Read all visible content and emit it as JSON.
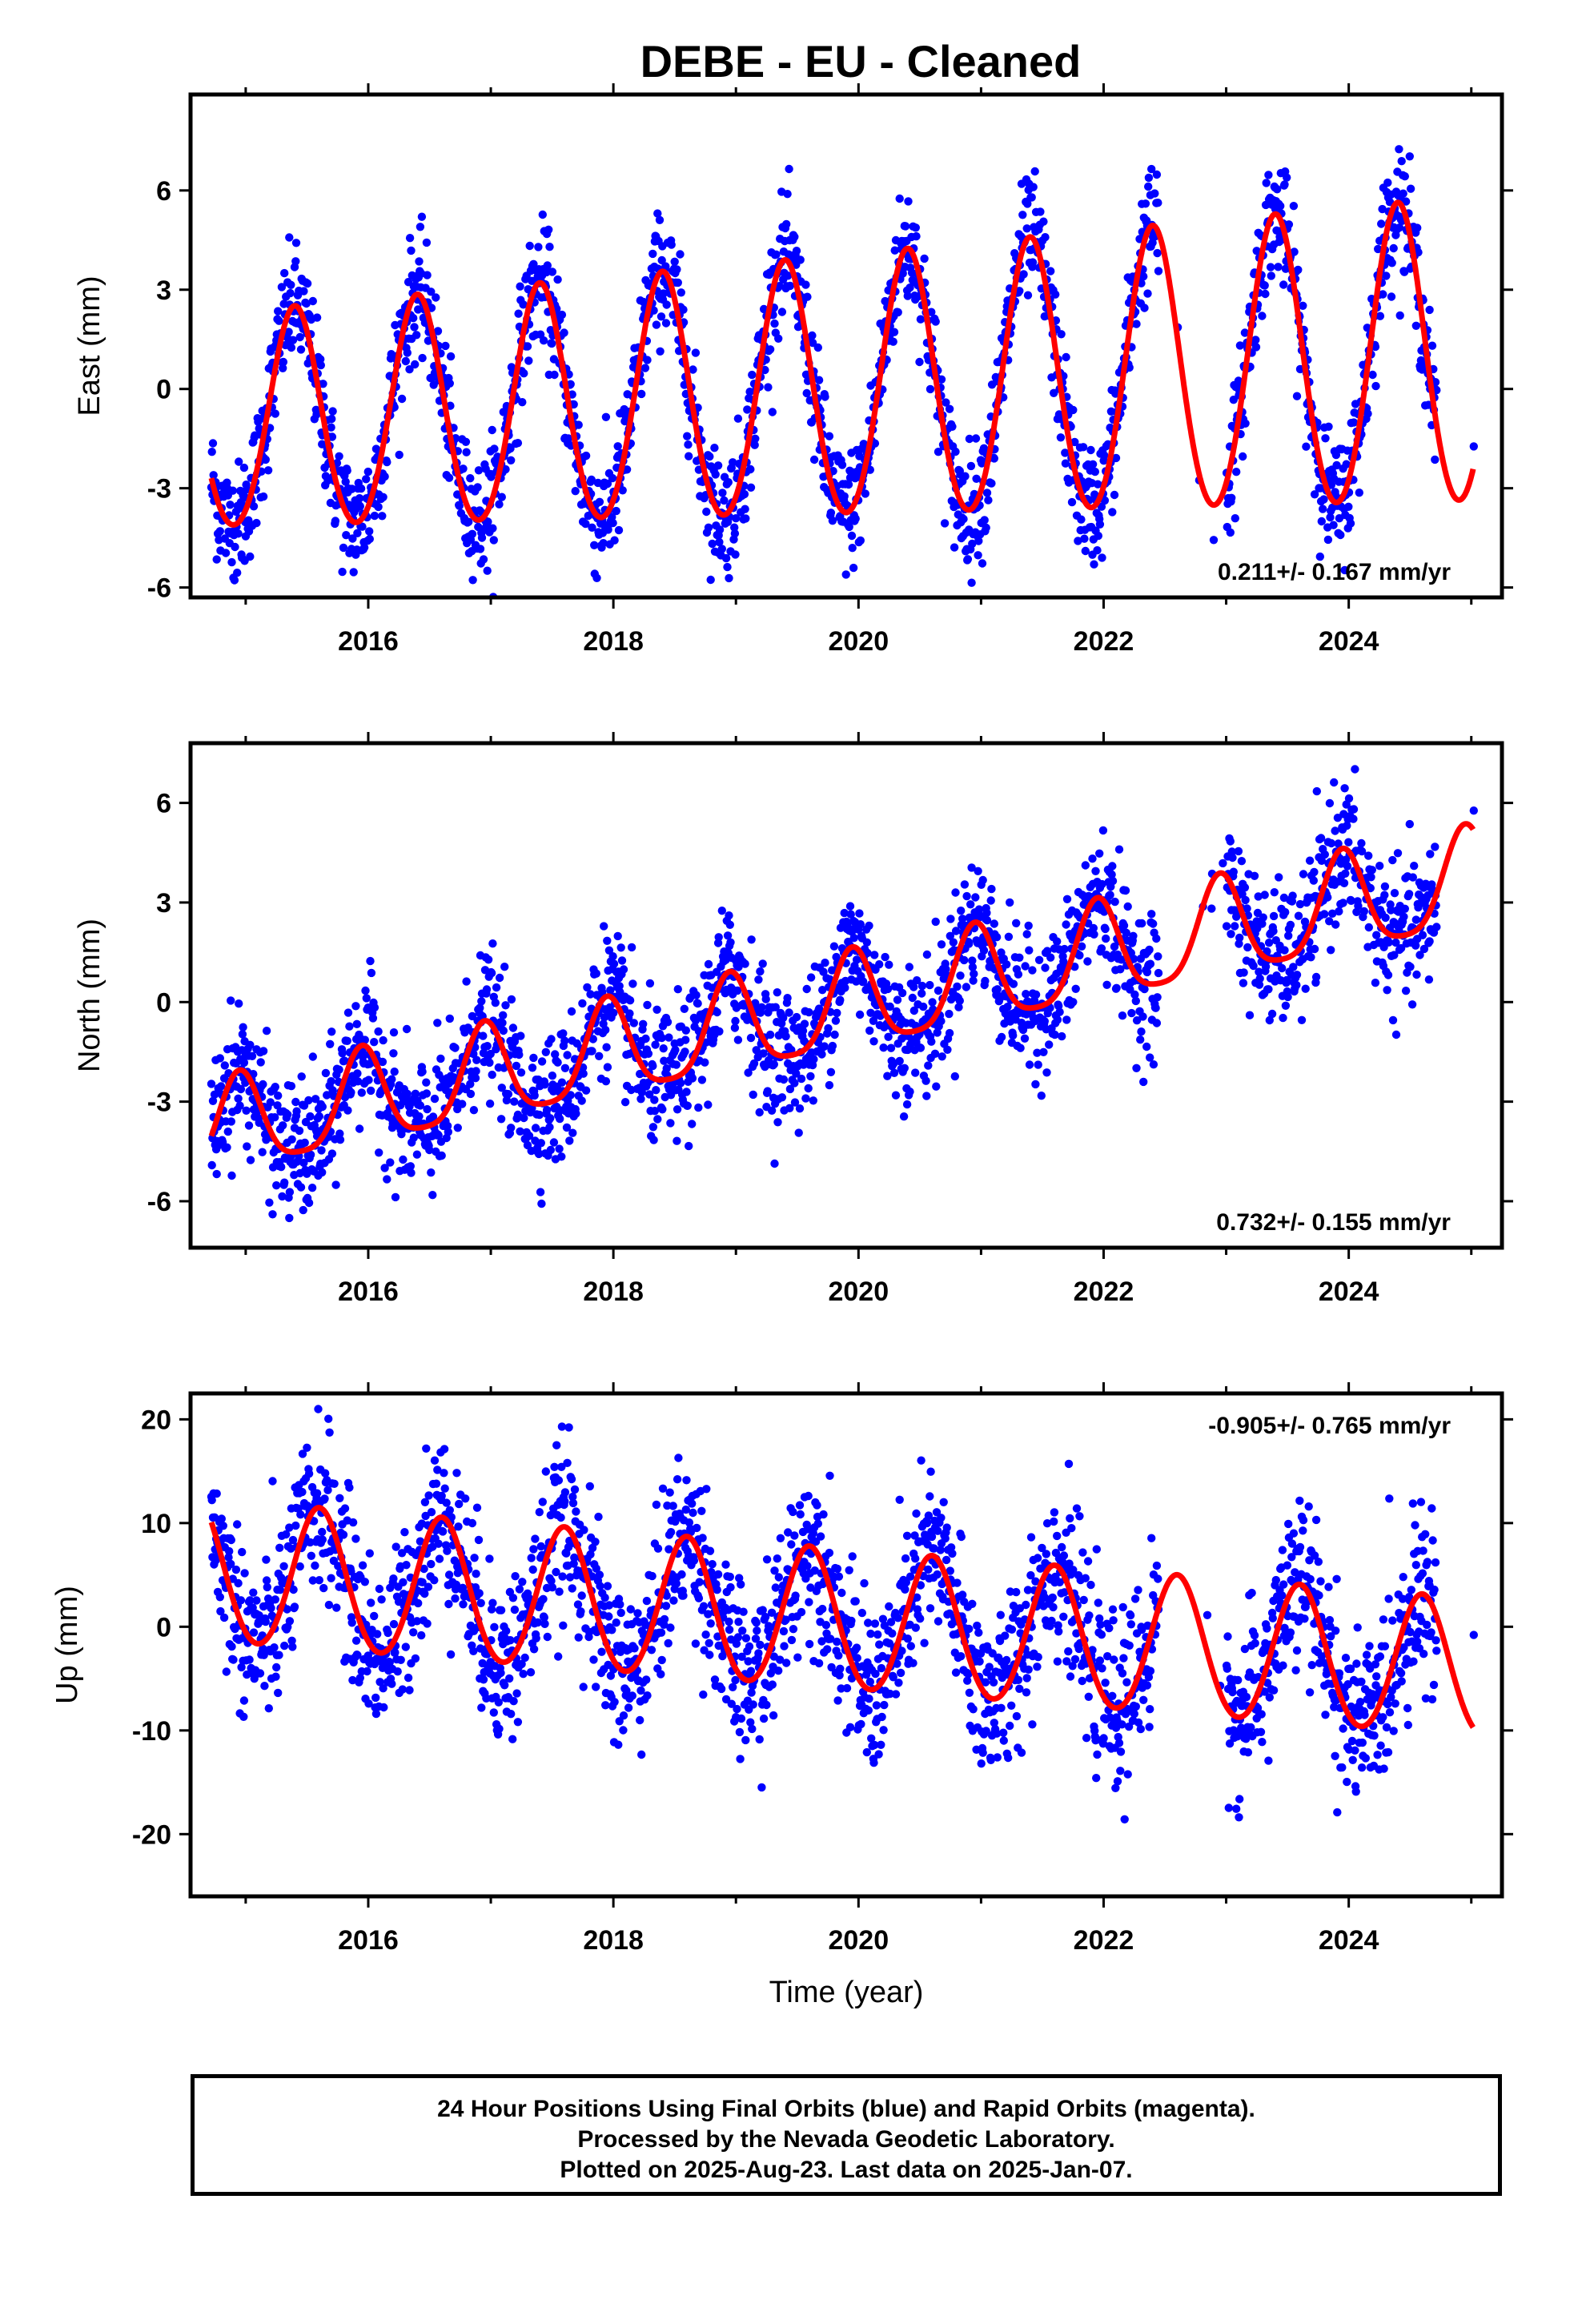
{
  "title": "DEBE  - EU - Cleaned",
  "colors": {
    "observations": "#0000ff",
    "model": "#ff0000",
    "frame": "#000000"
  },
  "chart_data": [
    {
      "type": "scatter",
      "panel": "east",
      "ylabel": "East (mm)",
      "xlabel": "",
      "xlim": [
        2014.55,
        2025.25
      ],
      "ylim": [
        -6.3,
        8.9
      ],
      "yticks": [
        -6,
        -3,
        0,
        3,
        6
      ],
      "xticks": [
        2016,
        2018,
        2020,
        2022,
        2024
      ],
      "rate_annotation": "0.211+/- 0.167 mm/yr",
      "annotation_position": "bottom-right",
      "model": {
        "name": "",
        "start": 2014.72,
        "end": 2025.02,
        "offset": -0.1,
        "trend": 0.211,
        "trend_ref": 2019.8,
        "annual_amp": [
          3.2,
          4.6
        ],
        "annual_phase_peak": 2015.4,
        "semiannual_amp": 0.25
      },
      "scatter": {
        "scatter_sd": 0.9,
        "gaps": [
          [
            2022.45,
            2023.0
          ]
        ]
      }
    },
    {
      "type": "scatter",
      "panel": "north",
      "ylabel": "North (mm)",
      "xlabel": "",
      "xlim": [
        2014.55,
        2025.25
      ],
      "ylim": [
        -7.4,
        7.8
      ],
      "yticks": [
        -6,
        -3,
        0,
        3,
        6
      ],
      "xticks": [
        2016,
        2018,
        2020,
        2022,
        2024
      ],
      "rate_annotation": "0.732+/- 0.155 mm/yr",
      "annotation_position": "bottom-right",
      "model": {
        "name": "",
        "start": 2014.72,
        "end": 2025.02,
        "offset": -0.2,
        "trend": 0.732,
        "trend_ref": 2019.8,
        "annual_amp": [
          1.4,
          1.5
        ],
        "annual_phase_peak": 2015.95,
        "semiannual_amp": 0.3
      },
      "scatter": {
        "scatter_sd": 1.0,
        "gaps": [
          [
            2022.45,
            2023.0
          ]
        ]
      }
    },
    {
      "type": "scatter",
      "panel": "up",
      "ylabel": "Up (mm)",
      "xlabel": "Time (year)",
      "xlim": [
        2014.55,
        2025.25
      ],
      "ylim": [
        -26,
        22.5
      ],
      "yticks": [
        -20,
        -10,
        0,
        10,
        20
      ],
      "xticks": [
        2016,
        2018,
        2020,
        2022,
        2024
      ],
      "rate_annotation": "-0.905+/- 0.765 mm/yr",
      "annotation_position": "top-right",
      "model": {
        "name": "",
        "start": 2014.72,
        "end": 2025.02,
        "offset": 0.5,
        "trend": -0.905,
        "trend_ref": 2019.8,
        "annual_amp": [
          6.8,
          6.6
        ],
        "annual_phase_peak": 2015.6,
        "semiannual_amp": 0.4
      },
      "scatter": {
        "scatter_sd": 4.0,
        "gaps": [
          [
            2022.45,
            2023.0
          ]
        ]
      }
    }
  ],
  "footer": {
    "line1": "24 Hour Positions Using Final Orbits (blue) and Rapid Orbits (magenta).",
    "line2": "Processed by the Nevada Geodetic Laboratory.",
    "line3": "Plotted on 2025-Aug-23. Last data on 2025-Jan-07."
  }
}
